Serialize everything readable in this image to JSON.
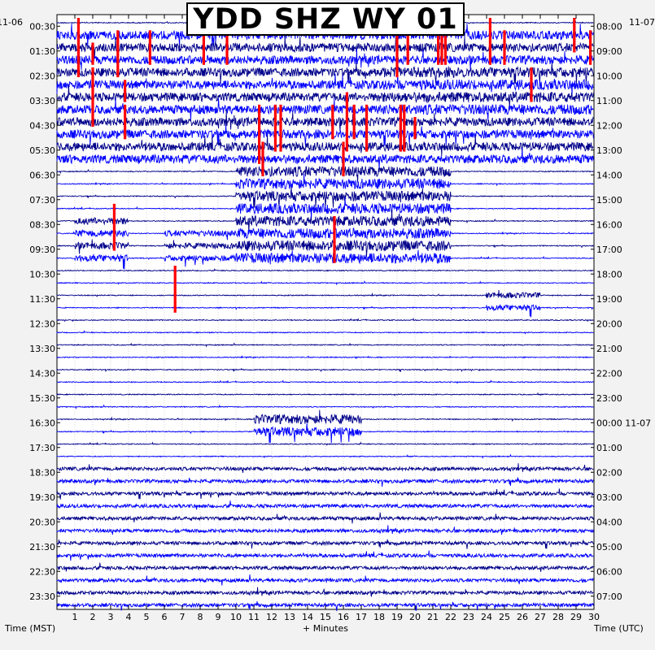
{
  "title": "YDD SHZ WY 01",
  "chart_data": {
    "type": "helicorder",
    "station": "YDD",
    "channel": "SHZ",
    "network": "WY",
    "location": "01",
    "left_date": "11-06",
    "right_date": "11-07",
    "left_axis_label": "Time (MST)",
    "right_axis_label": "Time (UTC)",
    "x_axis_label": "+ Minutes",
    "x_ticks": [
      "1",
      "2",
      "3",
      "4",
      "5",
      "6",
      "7",
      "8",
      "9",
      "10",
      "11",
      "12",
      "13",
      "14",
      "15",
      "16",
      "17",
      "18",
      "19",
      "20",
      "21",
      "22",
      "23",
      "24",
      "25",
      "26",
      "27",
      "28",
      "29",
      "30"
    ],
    "xlim": [
      0,
      30
    ],
    "left_hour_labels": [
      "00:30",
      "01:30",
      "02:30",
      "03:30",
      "04:30",
      "05:30",
      "06:30",
      "07:30",
      "08:30",
      "09:30",
      "10:30",
      "11:30",
      "12:30",
      "13:30",
      "14:30",
      "15:30",
      "16:30",
      "17:30",
      "18:30",
      "19:30",
      "20:30",
      "21:30",
      "22:30",
      "23:30"
    ],
    "right_hour_labels": [
      "08:00",
      "09:00",
      "10:00",
      "11:00",
      "12:00",
      "13:00",
      "14:00",
      "15:00",
      "16:00",
      "17:00",
      "18:00",
      "19:00",
      "20:00",
      "21:00",
      "22:00",
      "23:00",
      "00:00 11-07",
      "01:00",
      "02:00",
      "03:00",
      "04:00",
      "05:00",
      "06:00",
      "07:00"
    ],
    "trace_rows": 48,
    "minutes_per_row": 30,
    "trace_colors": [
      "#00008b",
      "#0000ff"
    ],
    "clip_color": "#ff0000",
    "grid": true,
    "activity": [
      {
        "rows": [
          1,
          11
        ],
        "minutes": [
          0,
          30
        ],
        "level": 0.75
      },
      {
        "rows": [
          4,
          7
        ],
        "minutes": [
          18,
          30
        ],
        "level": 0.9
      },
      {
        "rows": [
          12,
          19
        ],
        "minutes": [
          10,
          22
        ],
        "level": 0.9
      },
      {
        "rows": [
          16,
          19
        ],
        "minutes": [
          1,
          4
        ],
        "level": 0.6
      },
      {
        "rows": [
          17,
          19
        ],
        "minutes": [
          6,
          14
        ],
        "level": 0.5
      },
      {
        "rows": [
          22,
          23
        ],
        "minutes": [
          24,
          27
        ],
        "level": 0.5
      },
      {
        "rows": [
          32,
          33
        ],
        "minutes": [
          11,
          17
        ],
        "level": 0.8
      },
      {
        "rows": [
          36,
          47
        ],
        "minutes": [
          0,
          30
        ],
        "level": 0.3
      }
    ],
    "clipped_events": [
      {
        "minute": 1.2,
        "row_start": 0,
        "row_end": 4
      },
      {
        "minute": 2.0,
        "row_start": 2,
        "row_end": 3
      },
      {
        "minute": 3.4,
        "row_start": 1,
        "row_end": 4
      },
      {
        "minute": 5.2,
        "row_start": 1,
        "row_end": 3
      },
      {
        "minute": 8.2,
        "row_start": 1,
        "row_end": 3
      },
      {
        "minute": 9.5,
        "row_start": 0,
        "row_end": 3
      },
      {
        "minute": 19.0,
        "row_start": 1,
        "row_end": 4
      },
      {
        "minute": 19.6,
        "row_start": 1,
        "row_end": 3
      },
      {
        "minute": 21.3,
        "row_start": 0,
        "row_end": 3
      },
      {
        "minute": 21.5,
        "row_start": 0,
        "row_end": 3
      },
      {
        "minute": 21.7,
        "row_start": 0,
        "row_end": 3
      },
      {
        "minute": 24.2,
        "row_start": 0,
        "row_end": 3
      },
      {
        "minute": 25.0,
        "row_start": 1,
        "row_end": 3
      },
      {
        "minute": 28.9,
        "row_start": 0,
        "row_end": 2
      },
      {
        "minute": 29.8,
        "row_start": 1,
        "row_end": 3
      },
      {
        "minute": 26.5,
        "row_start": 4,
        "row_end": 6
      },
      {
        "minute": 2.0,
        "row_start": 4,
        "row_end": 8
      },
      {
        "minute": 3.8,
        "row_start": 5,
        "row_end": 6
      },
      {
        "minute": 3.8,
        "row_start": 7,
        "row_end": 9
      },
      {
        "minute": 11.3,
        "row_start": 7,
        "row_end": 11
      },
      {
        "minute": 12.2,
        "row_start": 7,
        "row_end": 10
      },
      {
        "minute": 12.5,
        "row_start": 7,
        "row_end": 10
      },
      {
        "minute": 15.4,
        "row_start": 7,
        "row_end": 9
      },
      {
        "minute": 16.2,
        "row_start": 6,
        "row_end": 10
      },
      {
        "minute": 16.6,
        "row_start": 7,
        "row_end": 9
      },
      {
        "minute": 17.3,
        "row_start": 7,
        "row_end": 10
      },
      {
        "minute": 19.2,
        "row_start": 7,
        "row_end": 10
      },
      {
        "minute": 19.4,
        "row_start": 7,
        "row_end": 10
      },
      {
        "minute": 20.0,
        "row_start": 8,
        "row_end": 9
      },
      {
        "minute": 16.0,
        "row_start": 10,
        "row_end": 12
      },
      {
        "minute": 11.5,
        "row_start": 10,
        "row_end": 12
      },
      {
        "minute": 3.2,
        "row_start": 15,
        "row_end": 18
      },
      {
        "minute": 15.5,
        "row_start": 16,
        "row_end": 19
      },
      {
        "minute": 6.6,
        "row_start": 20,
        "row_end": 23
      }
    ]
  }
}
